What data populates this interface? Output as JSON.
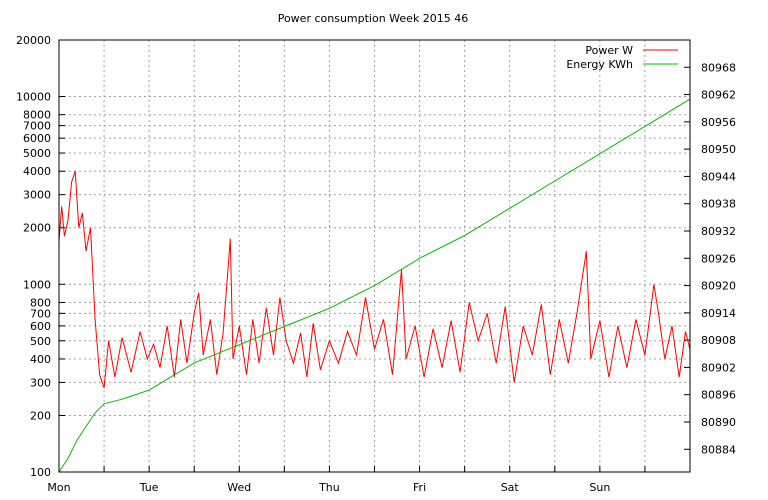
{
  "chart_data": {
    "type": "line",
    "title": "Power consumption Week 2015 46",
    "x_categories": [
      "Mon",
      "Tue",
      "Wed",
      "Thu",
      "Fri",
      "Sat",
      "Sun"
    ],
    "x_range_days": [
      0,
      7
    ],
    "grid": true,
    "legend_position": "top-right",
    "y_left": {
      "scale": "log",
      "range": [
        100,
        20000
      ],
      "tick_labels": [
        "100",
        "200",
        "300",
        "400",
        "500",
        "600",
        "700",
        "800",
        "1000",
        "2000",
        "3000",
        "4000",
        "5000",
        "6000",
        "7000",
        "8000",
        "10000",
        "20000"
      ]
    },
    "y_right": {
      "scale": "linear",
      "range": [
        80879,
        80974
      ],
      "tick_labels": [
        "80884",
        "80890",
        "80896",
        "80902",
        "80908",
        "80914",
        "80920",
        "80926",
        "80932",
        "80938",
        "80944",
        "80950",
        "80956",
        "80962",
        "80968"
      ]
    },
    "series": [
      {
        "name": "Power W",
        "axis": "left",
        "color": "#ff0000",
        "points": [
          [
            0.0,
            1700
          ],
          [
            0.03,
            2600
          ],
          [
            0.06,
            1800
          ],
          [
            0.1,
            2200
          ],
          [
            0.14,
            3500
          ],
          [
            0.18,
            4000
          ],
          [
            0.22,
            2000
          ],
          [
            0.26,
            2400
          ],
          [
            0.3,
            1500
          ],
          [
            0.35,
            2000
          ],
          [
            0.38,
            1000
          ],
          [
            0.4,
            650
          ],
          [
            0.45,
            330
          ],
          [
            0.5,
            280
          ],
          [
            0.55,
            500
          ],
          [
            0.62,
            320
          ],
          [
            0.7,
            520
          ],
          [
            0.8,
            340
          ],
          [
            0.9,
            560
          ],
          [
            0.98,
            400
          ],
          [
            1.05,
            480
          ],
          [
            1.12,
            360
          ],
          [
            1.2,
            600
          ],
          [
            1.28,
            320
          ],
          [
            1.35,
            650
          ],
          [
            1.42,
            380
          ],
          [
            1.5,
            700
          ],
          [
            1.55,
            900
          ],
          [
            1.6,
            420
          ],
          [
            1.68,
            650
          ],
          [
            1.75,
            330
          ],
          [
            1.82,
            550
          ],
          [
            1.9,
            1750
          ],
          [
            1.93,
            400
          ],
          [
            2.0,
            600
          ],
          [
            2.08,
            330
          ],
          [
            2.15,
            650
          ],
          [
            2.22,
            380
          ],
          [
            2.3,
            750
          ],
          [
            2.38,
            420
          ],
          [
            2.45,
            850
          ],
          [
            2.52,
            500
          ],
          [
            2.6,
            380
          ],
          [
            2.68,
            550
          ],
          [
            2.75,
            320
          ],
          [
            2.82,
            620
          ],
          [
            2.9,
            350
          ],
          [
            3.0,
            500
          ],
          [
            3.1,
            380
          ],
          [
            3.2,
            560
          ],
          [
            3.3,
            420
          ],
          [
            3.4,
            850
          ],
          [
            3.5,
            450
          ],
          [
            3.6,
            650
          ],
          [
            3.7,
            330
          ],
          [
            3.8,
            1200
          ],
          [
            3.85,
            400
          ],
          [
            3.95,
            600
          ],
          [
            4.05,
            320
          ],
          [
            4.15,
            580
          ],
          [
            4.25,
            360
          ],
          [
            4.35,
            640
          ],
          [
            4.45,
            340
          ],
          [
            4.55,
            800
          ],
          [
            4.65,
            500
          ],
          [
            4.75,
            700
          ],
          [
            4.85,
            380
          ],
          [
            4.95,
            760
          ],
          [
            5.05,
            300
          ],
          [
            5.15,
            600
          ],
          [
            5.25,
            420
          ],
          [
            5.35,
            780
          ],
          [
            5.45,
            330
          ],
          [
            5.55,
            650
          ],
          [
            5.65,
            380
          ],
          [
            5.75,
            720
          ],
          [
            5.85,
            1500
          ],
          [
            5.9,
            400
          ],
          [
            6.0,
            640
          ],
          [
            6.1,
            320
          ],
          [
            6.2,
            600
          ],
          [
            6.3,
            360
          ],
          [
            6.4,
            650
          ],
          [
            6.5,
            420
          ],
          [
            6.6,
            1000
          ],
          [
            6.65,
            700
          ],
          [
            6.72,
            400
          ],
          [
            6.8,
            600
          ],
          [
            6.88,
            320
          ],
          [
            6.95,
            560
          ],
          [
            7.0,
            450
          ]
        ]
      },
      {
        "name": "Energy KWh",
        "axis": "right",
        "color": "#00bb00",
        "points": [
          [
            0.0,
            80879
          ],
          [
            0.1,
            80882
          ],
          [
            0.2,
            80886
          ],
          [
            0.3,
            80889
          ],
          [
            0.4,
            80892
          ],
          [
            0.5,
            80894
          ],
          [
            0.7,
            80895
          ],
          [
            1.0,
            80897
          ],
          [
            1.5,
            80903
          ],
          [
            2.0,
            80907
          ],
          [
            2.5,
            80911
          ],
          [
            3.0,
            80915
          ],
          [
            3.5,
            80920
          ],
          [
            4.0,
            80926
          ],
          [
            4.5,
            80931
          ],
          [
            5.0,
            80937
          ],
          [
            5.5,
            80943
          ],
          [
            6.0,
            80949
          ],
          [
            6.5,
            80955
          ],
          [
            7.0,
            80961
          ]
        ]
      }
    ]
  }
}
